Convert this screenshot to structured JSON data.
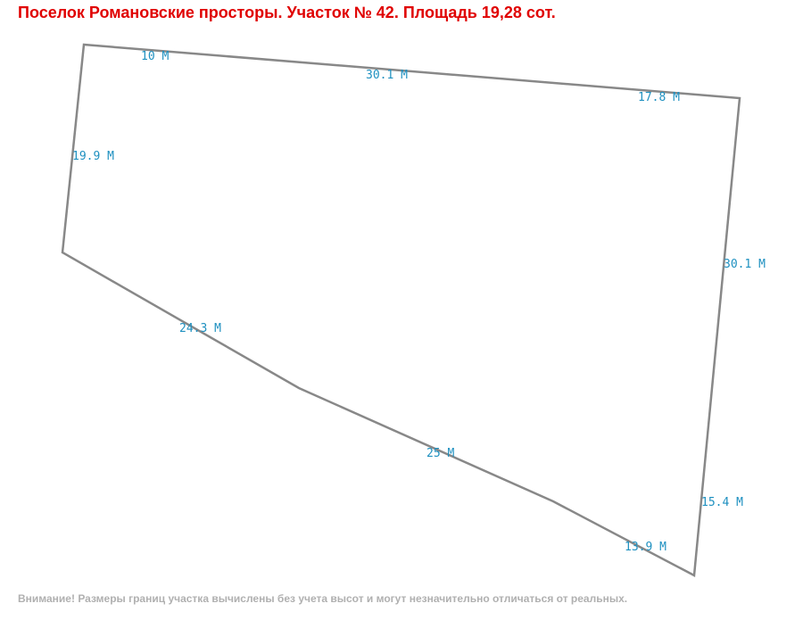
{
  "header": {
    "title": "Поселок Романовские просторы. Участок № 42. Площадь 19,28 сот."
  },
  "edges": [
    {
      "label": "10 М"
    },
    {
      "label": "30.1 М"
    },
    {
      "label": "17.8 М"
    },
    {
      "label": "19.9 М"
    },
    {
      "label": "30.1 М"
    },
    {
      "label": "24.3 М"
    },
    {
      "label": "25 М"
    },
    {
      "label": "15.4 М"
    },
    {
      "label": "13.9 М"
    }
  ],
  "footer": {
    "note": "Внимание! Размеры границ участка вычислены без учета высот и могут незначительно отличаться от реальных."
  }
}
